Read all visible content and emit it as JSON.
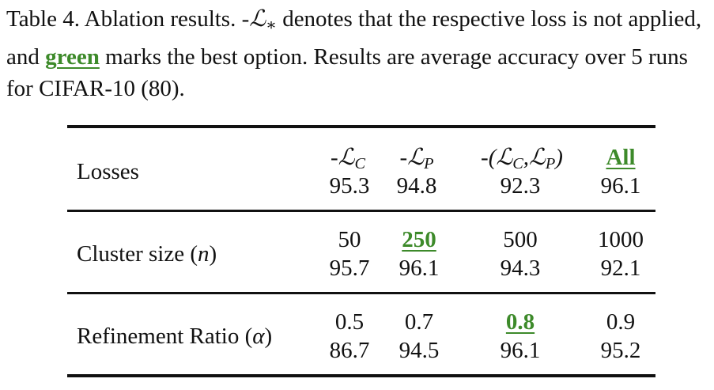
{
  "caption": {
    "prefix": "Table 4.  Ablation results.  -",
    "loss_symbol": "ℒ",
    "loss_sub": "∗",
    "mid": " denotes that the respective loss is not applied, and ",
    "green_word": "green",
    "suffix": " marks the best option.  Results are average accuracy over 5 runs for CIFAR-10 (80)."
  },
  "table": {
    "losses": {
      "label": "Losses",
      "headers": [
        "-ℒ",
        "-ℒ",
        "-(ℒ",
        "All"
      ],
      "header_subs": [
        "C",
        "P",
        "C",
        "P"
      ],
      "values": [
        "95.3",
        "94.8",
        "92.3",
        "96.1"
      ],
      "best_index": 3
    },
    "cluster": {
      "label": "Cluster size (",
      "symbol": "n",
      "close": ")",
      "params": [
        "50",
        "250",
        "500",
        "1000"
      ],
      "values": [
        "95.7",
        "96.1",
        "94.3",
        "92.1"
      ],
      "best_index": 1
    },
    "ratio": {
      "label": "Refinement Ratio (",
      "symbol": "α",
      "close": ")",
      "params": [
        "0.5",
        "0.7",
        "0.8",
        "0.9"
      ],
      "values": [
        "86.7",
        "94.5",
        "96.1",
        "95.2"
      ],
      "best_index": 2
    }
  },
  "colors": {
    "best": "#3d8a2a",
    "text": "#111111"
  }
}
